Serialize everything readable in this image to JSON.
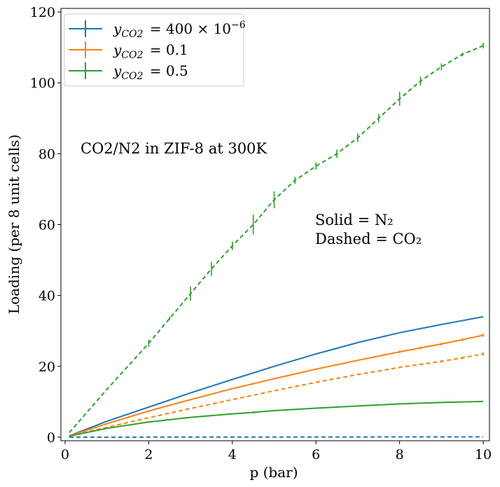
{
  "chart_data": {
    "type": "line",
    "title": "",
    "xlabel": "p (bar)",
    "ylabel": "Loading (per 8 unit cells)",
    "xlim": [
      -0.1,
      10.15
    ],
    "ylim": [
      -1,
      121
    ],
    "xticks": [
      0,
      2,
      4,
      6,
      8,
      10
    ],
    "yticks": [
      0,
      20,
      40,
      60,
      80,
      100,
      120
    ],
    "grid": false,
    "legend_position": "top-left",
    "annotations": {
      "system": "CO2/N2 in ZIF-8 at 300K",
      "solid": "Solid = N₂",
      "dashed": "Dashed = CO₂"
    },
    "series": [
      {
        "name": "y_CO2 = 400 × 10⁻⁶",
        "legend": {
          "y_sub": "CO2",
          "eq": "= 400 × 10",
          "sup": "−6"
        },
        "color": "#1f77b4",
        "n2_solid": {
          "x": [
            0.1,
            1,
            2,
            3,
            4,
            5,
            6,
            7,
            8,
            9,
            10
          ],
          "y": [
            0.4,
            4.5,
            8.5,
            12.5,
            16.3,
            20.0,
            23.5,
            26.7,
            29.5,
            31.8,
            34.0
          ],
          "err": []
        },
        "co2_dashed": {
          "x": [
            0.1,
            1,
            2,
            3,
            4,
            5,
            6,
            7,
            8,
            9,
            10
          ],
          "y": [
            0.0,
            0.01,
            0.02,
            0.03,
            0.04,
            0.05,
            0.06,
            0.07,
            0.08,
            0.09,
            0.1
          ],
          "err": []
        }
      },
      {
        "name": "y_CO2 = 0.1",
        "legend": {
          "y_sub": "CO2",
          "eq": "= 0.1",
          "sup": ""
        },
        "color": "#ff7f0e",
        "n2_solid": {
          "x": [
            0.1,
            1,
            2,
            3,
            4,
            5,
            6,
            7,
            8,
            8.5,
            9,
            9.5,
            10
          ],
          "y": [
            0.4,
            3.8,
            7.4,
            10.6,
            13.7,
            16.5,
            19.2,
            21.7,
            24.1,
            25.2,
            26.3,
            27.5,
            28.8
          ],
          "err": [
            0,
            0,
            0,
            0,
            0,
            0,
            0,
            0,
            0.4,
            0.4,
            0.4,
            0.4,
            0.5
          ]
        },
        "co2_dashed": {
          "x": [
            0.1,
            1,
            2,
            3,
            4,
            5,
            6,
            7,
            8,
            9,
            9.5,
            10
          ],
          "y": [
            0.4,
            2.8,
            5.5,
            8.1,
            10.6,
            13.1,
            15.5,
            17.7,
            19.7,
            21.4,
            22.4,
            23.5
          ],
          "err": [
            0,
            0,
            0,
            0,
            0,
            0,
            0,
            0,
            0,
            0.4,
            0.4,
            0.5
          ]
        }
      },
      {
        "name": "y_CO2 = 0.5",
        "legend": {
          "y_sub": "CO2",
          "eq": "= 0.5",
          "sup": ""
        },
        "color": "#2ca02c",
        "n2_solid": {
          "x": [
            0.1,
            1,
            2,
            3,
            4,
            4.5,
            5,
            6,
            7,
            8,
            9,
            10
          ],
          "y": [
            0.3,
            2.5,
            4.3,
            5.6,
            6.6,
            7.0,
            7.5,
            8.2,
            8.8,
            9.4,
            9.8,
            10.1
          ],
          "err": [
            0,
            0,
            0,
            0,
            0,
            0.3,
            0,
            0,
            0,
            0,
            0,
            0
          ]
        },
        "co2_dashed": {
          "x": [
            0.1,
            1,
            2,
            2.5,
            3,
            3.5,
            4,
            4.5,
            5,
            5.5,
            6,
            6.5,
            7,
            7.5,
            8,
            8.5,
            9,
            9.5,
            10
          ],
          "y": [
            1.3,
            13.5,
            26.5,
            33.5,
            40.5,
            47.5,
            54.0,
            60.0,
            67.0,
            72.5,
            76.5,
            80.0,
            84.5,
            90.0,
            95.5,
            100.5,
            104.5,
            108.0,
            110.5
          ],
          "err": [
            0,
            0,
            1.0,
            0.5,
            2.0,
            2.0,
            1.2,
            2.8,
            2.4,
            1.0,
            1.0,
            1.2,
            1.2,
            1.2,
            2.0,
            1.3,
            1.0,
            0.5,
            0.8
          ]
        }
      }
    ]
  }
}
